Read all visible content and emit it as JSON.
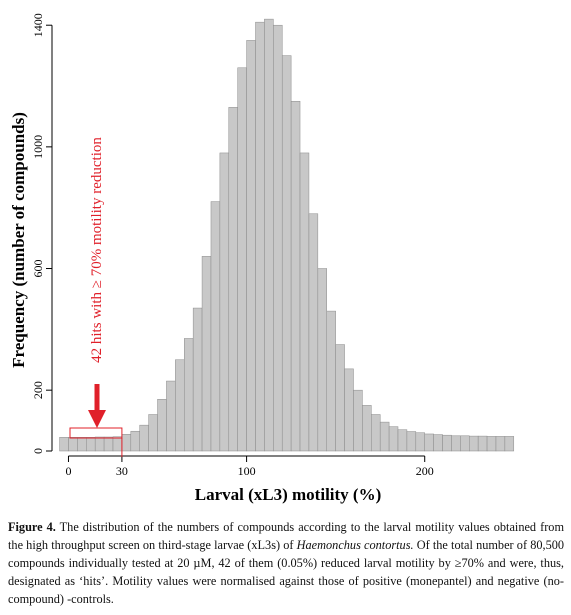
{
  "chart_data": {
    "type": "histogram",
    "ylabel": "Frequency (number of compounds)",
    "xlabel": "Larval (xL3) motility (%)",
    "annotation": "42 hits with ≥ 70% motility reduction",
    "color": "#c8c8c8",
    "bins": [
      -5,
      0,
      5,
      10,
      15,
      20,
      25,
      30,
      35,
      40,
      45,
      50,
      55,
      60,
      65,
      70,
      75,
      80,
      85,
      90,
      95,
      100,
      105,
      110,
      115,
      120,
      125,
      130,
      135,
      140,
      145,
      150,
      155,
      160,
      165,
      170,
      175,
      180,
      185,
      190,
      195,
      200,
      205,
      210,
      215,
      220,
      225,
      230,
      235,
      240,
      245,
      250
    ],
    "values": [
      45,
      45,
      45,
      45,
      46,
      46,
      47,
      55,
      65,
      85,
      120,
      170,
      230,
      300,
      370,
      470,
      640,
      820,
      980,
      1130,
      1260,
      1350,
      1410,
      1420,
      1400,
      1300,
      1150,
      980,
      780,
      600,
      460,
      350,
      270,
      200,
      150,
      120,
      95,
      80,
      70,
      64,
      60,
      56,
      54,
      52,
      50,
      50,
      49,
      49,
      48,
      48,
      48
    ],
    "xlim": [
      -7,
      249
    ],
    "xticks": [
      0,
      30,
      100,
      200
    ],
    "ylim": [
      0,
      1450
    ],
    "yticks": [
      0,
      200,
      600,
      1000,
      1400
    ]
  },
  "caption": {
    "label": "Figure 4.",
    "text_1": "The distribution of the numbers of compounds according to the larval motility values obtained from the high throughput screen on third-stage larvae (xL3s) of",
    "species": "Haemonchus contortus.",
    "text_2": "Of the total number of 80,500 compounds individually tested at 20 µM, 42 of them (0.05%) reduced larval motility by ≥70% and were, thus, designated as ‘hits’. Motility values were normalised against those of positive (monepantel) and negative (no-compound) -controls."
  }
}
